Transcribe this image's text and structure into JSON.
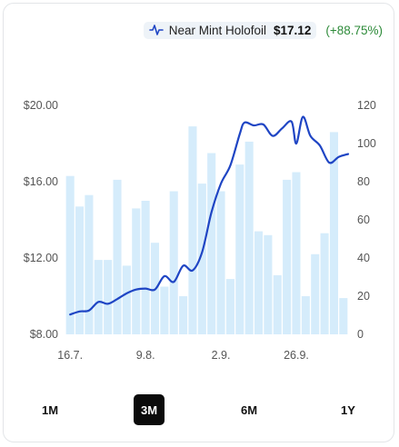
{
  "legend": {
    "name": "Near Mint Holofoil",
    "price": "$17.12",
    "change": "(+88.75%)",
    "line_color": "#1f45c4",
    "change_color": "#2e8b3a"
  },
  "range_buttons": [
    {
      "label": "1M",
      "active": false
    },
    {
      "label": "3M",
      "active": true
    },
    {
      "label": "6M",
      "active": false
    },
    {
      "label": "1Y",
      "active": false
    }
  ],
  "chart_data": {
    "type": "bar+line",
    "x_tick_labels": [
      "16.7.",
      "9.8.",
      "2.9.",
      "26.9."
    ],
    "x_tick_index": [
      0,
      8,
      16,
      24
    ],
    "y_left": {
      "tick_labels": [
        "$20.00",
        "$16.00",
        "$12.00",
        "$8.00"
      ],
      "ticks": [
        20,
        16,
        12,
        8
      ],
      "range": [
        8,
        20
      ]
    },
    "y_right": {
      "tick_labels": [
        "120",
        "100",
        "80",
        "60",
        "40",
        "20",
        "0"
      ],
      "ticks": [
        120,
        100,
        80,
        60,
        40,
        20,
        0
      ],
      "range": [
        0,
        120
      ]
    },
    "bars": {
      "axis": "right",
      "color": "#d5ecfb",
      "values": [
        83,
        67,
        73,
        39,
        39,
        81,
        36,
        66,
        70,
        48,
        25,
        75,
        20,
        109,
        79,
        95,
        75,
        29,
        89,
        101,
        54,
        52,
        31,
        81,
        85,
        20,
        42,
        53,
        106,
        19
      ]
    },
    "price_line": {
      "axis": "left",
      "color": "#1f45c4",
      "points": [
        [
          0,
          9.04
        ],
        [
          1,
          9.2
        ],
        [
          2,
          9.25
        ],
        [
          3,
          9.7
        ],
        [
          4,
          9.6
        ],
        [
          5,
          9.85
        ],
        [
          6,
          10.15
        ],
        [
          7,
          10.35
        ],
        [
          8,
          10.4
        ],
        [
          9,
          10.35
        ],
        [
          10,
          11.05
        ],
        [
          11,
          10.75
        ],
        [
          12,
          11.6
        ],
        [
          13,
          11.35
        ],
        [
          14,
          12.3
        ],
        [
          15,
          14.4
        ],
        [
          16,
          15.9
        ],
        [
          17,
          16.85
        ],
        [
          18,
          18.5
        ],
        [
          18.5,
          19.1
        ],
        [
          19.5,
          18.95
        ],
        [
          20.5,
          19.0
        ],
        [
          21.5,
          18.4
        ],
        [
          22.5,
          18.8
        ],
        [
          23.5,
          19.15
        ],
        [
          24,
          18.0
        ],
        [
          24.7,
          19.4
        ],
        [
          25.5,
          18.4
        ],
        [
          26.5,
          17.9
        ],
        [
          27.5,
          17.0
        ],
        [
          28.5,
          17.3
        ],
        [
          29.5,
          17.45
        ]
      ]
    },
    "grid": false,
    "legend_position": "top-right"
  }
}
